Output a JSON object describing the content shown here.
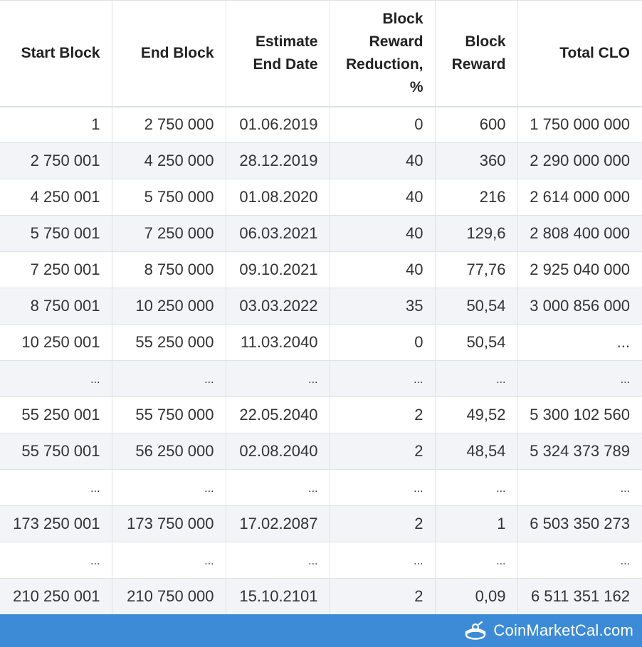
{
  "table": {
    "headers": [
      "Start Block",
      "End Block",
      "Estimate End Date",
      "Block Reward Reduction, %",
      "Block Reward",
      "Total CLO"
    ],
    "rows": [
      [
        "1",
        "2 750 000",
        "01.06.2019",
        "0",
        "600",
        "1 750 000 000"
      ],
      [
        "2 750 001",
        "4 250 000",
        "28.12.2019",
        "40",
        "360",
        "2 290 000 000"
      ],
      [
        "4 250 001",
        "5 750 000",
        "01.08.2020",
        "40",
        "216",
        "2 614 000 000"
      ],
      [
        "5 750 001",
        "7 250 000",
        "06.03.2021",
        "40",
        "129,6",
        "2 808 400 000"
      ],
      [
        "7 250 001",
        "8 750 000",
        "09.10.2021",
        "40",
        "77,76",
        "2 925 040 000"
      ],
      [
        "8 750 001",
        "10 250 000",
        "03.03.2022",
        "35",
        "50,54",
        "3 000 856 000"
      ],
      [
        "10 250 001",
        "55 250 000",
        "11.03.2040",
        "0",
        "50,54",
        "..."
      ],
      [
        "...",
        "...",
        "...",
        "...",
        "...",
        "..."
      ],
      [
        "55 250 001",
        "55 750 000",
        "22.05.2040",
        "2",
        "49,52",
        "5 300 102 560"
      ],
      [
        "55 750 001",
        "56 250 000",
        "02.08.2040",
        "2",
        "48,54",
        "5 324 373 789"
      ],
      [
        "...",
        "...",
        "...",
        "...",
        "...",
        "..."
      ],
      [
        "173 250 001",
        "173 750 000",
        "17.02.2087",
        "2",
        "1",
        "6 503 350 273"
      ],
      [
        "...",
        "...",
        "...",
        "...",
        "...",
        "..."
      ],
      [
        "210 250 001",
        "210 750 000",
        "15.10.2101",
        "2",
        "0,09",
        "6 511 351 162"
      ]
    ]
  },
  "footer": {
    "brand": "CoinMarketCal.com",
    "logo_icon": "coinmarketcal-logo-icon",
    "background_color": "#3d8bd6"
  },
  "colors": {
    "stripe": "#f2f4f8",
    "border": "#dee2e6",
    "text": "#333333"
  }
}
